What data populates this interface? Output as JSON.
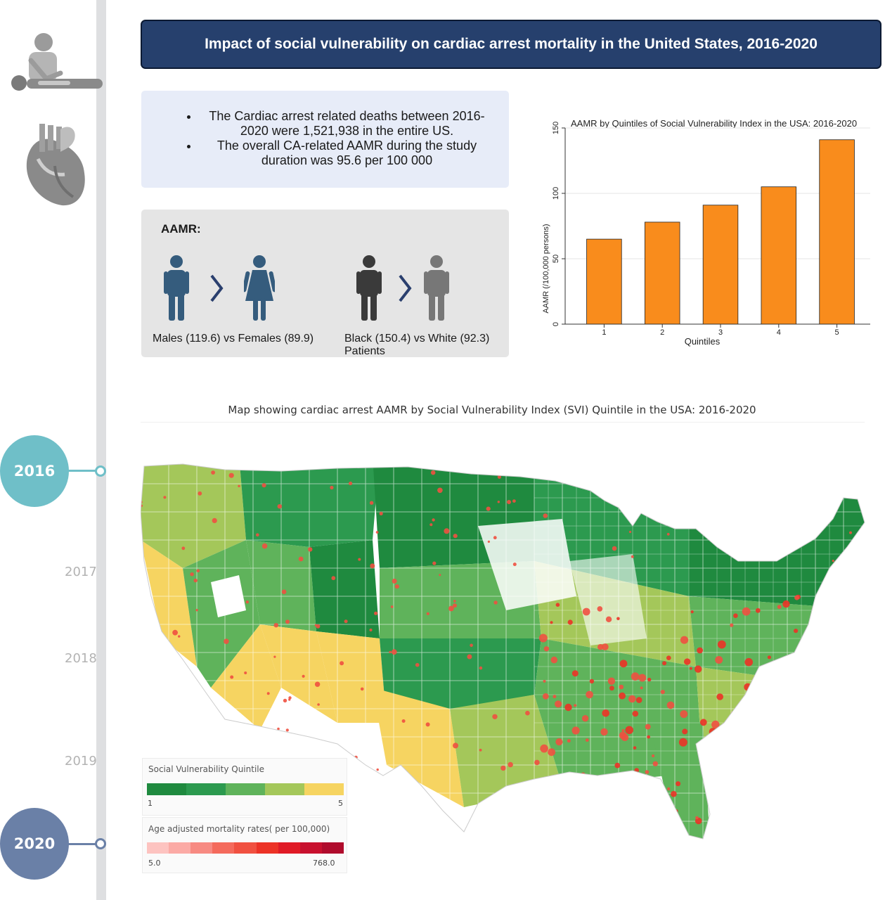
{
  "banner": {
    "title": "Impact of social vulnerability on cardiac arrest mortality in the United States, 2016-2020"
  },
  "timeline": {
    "years": [
      {
        "label": "2016",
        "highlight": true,
        "color": "#6fbfc8"
      },
      {
        "label": "2017",
        "highlight": false
      },
      {
        "label": "2018",
        "highlight": false
      },
      {
        "label": "2019",
        "highlight": false
      },
      {
        "label": "2020",
        "highlight": true,
        "color": "#6a80a7"
      }
    ]
  },
  "icons": {
    "top": "cpr-person-icon",
    "second": "heart-icon"
  },
  "summary": {
    "bullets": [
      "The Cardiac arrest related deaths between 2016-2020 were 1,521,938 in the entire US.",
      "The overall CA-related AAMR during the study duration was 95.6 per 100 000"
    ]
  },
  "aamr": {
    "title": "AAMR:",
    "sex_comparison": "Males (119.6) vs Females (89.9)",
    "race_comparison": "Black (150.4) vs White (92.3) Patients",
    "sex_colors": {
      "male": "#355c7d",
      "female": "#355c7d"
    },
    "race_colors": {
      "black": "#3a3a3a",
      "white": "#777777"
    }
  },
  "chart_data": {
    "type": "bar",
    "title": "AAMR by Quintiles of Social Vulnerability Index in the USA: 2016-2020",
    "xlabel": "Quintiles",
    "ylabel": "AAMR (/100,000 persons)",
    "categories": [
      "1",
      "2",
      "3",
      "4",
      "5"
    ],
    "values": [
      65,
      78,
      91,
      105,
      141
    ],
    "ylim": [
      0,
      150
    ],
    "yticks": [
      "0",
      "50",
      "100",
      "150"
    ],
    "bar_color": "#f98c1c",
    "grid": true
  },
  "map": {
    "title": "Map showing cardiac arrest AAMR by Social Vulnerability Index (SVI) Quintile in the USA: 2016-2020",
    "legend_svi": {
      "title": "Social Vulnerability Quintile",
      "min": "1",
      "max": "5",
      "colors": [
        "#1f8a3f",
        "#2c9a4f",
        "#5fb35b",
        "#a4c75a",
        "#f6d461"
      ]
    },
    "legend_aamr": {
      "title": "Age adjusted mortality rates( per 100,000)",
      "min": "5.0",
      "max": "768.0",
      "colors": [
        "#fdc3c0",
        "#fbaaa5",
        "#f78a82",
        "#f46a5c",
        "#f05040",
        "#ec3226",
        "#e01a26",
        "#c8102e",
        "#b00b2c"
      ]
    }
  }
}
